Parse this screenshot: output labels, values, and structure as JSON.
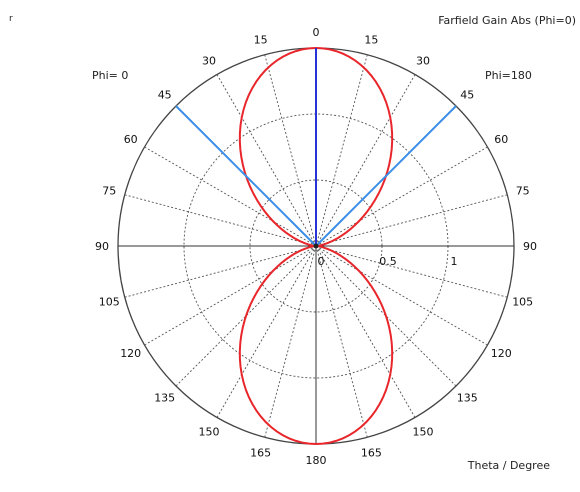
{
  "chart_data": {
    "type": "polar-line",
    "title": "Farfield Gain Abs (Phi=0)",
    "corner_mark": "r",
    "left_label": "Phi= 0",
    "right_label": "Phi=180",
    "axis_label": "Theta / Degree",
    "angle_ticks_left": [
      {
        "theta": 0,
        "label": "0"
      },
      {
        "theta": 15,
        "label": "15"
      },
      {
        "theta": 30,
        "label": "30"
      },
      {
        "theta": 45,
        "label": "45"
      },
      {
        "theta": 60,
        "label": "60"
      },
      {
        "theta": 75,
        "label": "75"
      },
      {
        "theta": 90,
        "label": "90"
      },
      {
        "theta": 105,
        "label": "105"
      },
      {
        "theta": 120,
        "label": "120"
      },
      {
        "theta": 135,
        "label": "135"
      },
      {
        "theta": 150,
        "label": "150"
      },
      {
        "theta": 165,
        "label": "165"
      },
      {
        "theta": 180,
        "label": "180"
      }
    ],
    "angle_ticks_right": [
      {
        "theta": 15,
        "label": "15"
      },
      {
        "theta": 30,
        "label": "30"
      },
      {
        "theta": 45,
        "label": "45"
      },
      {
        "theta": 60,
        "label": "60"
      },
      {
        "theta": 75,
        "label": "75"
      },
      {
        "theta": 90,
        "label": "90"
      },
      {
        "theta": 105,
        "label": "105"
      },
      {
        "theta": 120,
        "label": "120"
      },
      {
        "theta": 135,
        "label": "135"
      },
      {
        "theta": 150,
        "label": "150"
      },
      {
        "theta": 165,
        "label": "165"
      }
    ],
    "radial_ticks": [
      {
        "value": 0,
        "label": "0"
      },
      {
        "value": 0.5,
        "label": "0.5"
      },
      {
        "value": 1,
        "label": "1"
      }
    ],
    "radial_range": [
      0,
      1.5
    ],
    "radial_grid": [
      0.5,
      1.0
    ],
    "angle_grid_step_deg": 15,
    "pattern": {
      "type": "dipole",
      "max_gain": 1.5,
      "formula": "gain = max_gain * cos(theta)^2",
      "theta_step_deg": 2
    },
    "beam_lines": [
      {
        "theta": 0,
        "side": "center",
        "value": 1.5
      },
      {
        "theta": 45,
        "side": "left",
        "value": 1.5
      },
      {
        "theta": 45,
        "side": "right",
        "value": 1.5
      }
    ],
    "colors": {
      "pattern": "#e8262b",
      "beam_vertical": "#2833d6",
      "beam_diagonal": "#3a8ee6",
      "grid": "#555555",
      "outer_circle": "#444444",
      "axis": "#333333"
    }
  }
}
